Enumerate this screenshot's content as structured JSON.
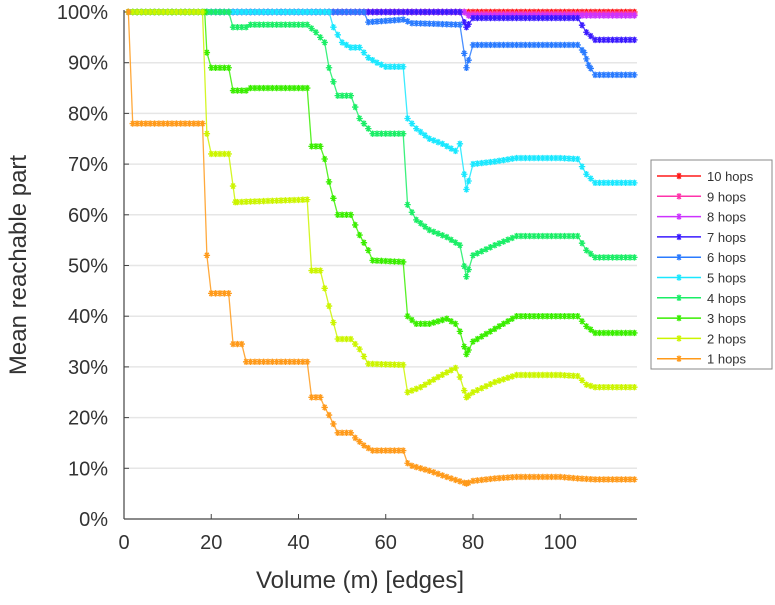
{
  "chart_data": {
    "type": "line",
    "title": "",
    "xlabel": "Volume (m) [edges]",
    "ylabel": "Mean reachable part",
    "xlim": [
      0,
      117.6
    ],
    "ylim": [
      0,
      100
    ],
    "xticks": [
      0,
      20,
      40,
      60,
      80,
      100
    ],
    "xtick_labels": [
      "0",
      "20",
      "40",
      "60",
      "80",
      "100"
    ],
    "yticks": [
      0,
      10,
      20,
      30,
      40,
      50,
      60,
      70,
      80,
      90,
      100
    ],
    "ytick_labels": [
      "0%",
      "10%",
      "20%",
      "30%",
      "40%",
      "50%",
      "60%",
      "70%",
      "80%",
      "90%",
      "100%"
    ],
    "grid": "horizontal",
    "legend_position": "right",
    "series": [
      {
        "name": "10 hops",
        "color": "#ff1a1a",
        "points": [
          [
            1,
            100
          ],
          [
            117,
            100
          ]
        ]
      },
      {
        "name": "9 hops",
        "color": "#ff33aa",
        "points": [
          [
            1,
            100
          ],
          [
            78,
            100
          ],
          [
            79,
            99.6
          ],
          [
            117,
            99.6
          ]
        ]
      },
      {
        "name": "8 hops",
        "color": "#cc33ff",
        "points": [
          [
            1,
            100
          ],
          [
            78,
            100
          ],
          [
            79,
            99.3
          ],
          [
            117,
            99.3
          ]
        ]
      },
      {
        "name": "7 hops",
        "color": "#3a1aff",
        "points": [
          [
            1,
            100
          ],
          [
            77,
            100
          ],
          [
            78.5,
            97
          ],
          [
            80,
            98.8
          ],
          [
            104,
            98.8
          ],
          [
            106,
            96
          ],
          [
            108,
            94.5
          ],
          [
            117,
            94.5
          ]
        ]
      },
      {
        "name": "6 hops",
        "color": "#2a7bff",
        "points": [
          [
            1,
            100
          ],
          [
            55,
            100
          ],
          [
            56,
            98
          ],
          [
            64,
            98.5
          ],
          [
            66,
            97.8
          ],
          [
            77,
            97.5
          ],
          [
            78.5,
            89
          ],
          [
            80,
            93.5
          ],
          [
            104,
            93.5
          ],
          [
            105.5,
            92
          ],
          [
            106.5,
            89.5
          ],
          [
            108,
            87.6
          ],
          [
            117,
            87.6
          ]
        ]
      },
      {
        "name": "5 hops",
        "color": "#1ae8ff",
        "points": [
          [
            1,
            100
          ],
          [
            47,
            100
          ],
          [
            48,
            97
          ],
          [
            50,
            94
          ],
          [
            52,
            93
          ],
          [
            54,
            93
          ],
          [
            56,
            91
          ],
          [
            58,
            90
          ],
          [
            60,
            89.2
          ],
          [
            64,
            89.2
          ],
          [
            65,
            79
          ],
          [
            67,
            77
          ],
          [
            70,
            75
          ],
          [
            73,
            74
          ],
          [
            76,
            72.6
          ],
          [
            77,
            74
          ],
          [
            78.5,
            65
          ],
          [
            80,
            70
          ],
          [
            85,
            70.5
          ],
          [
            90,
            71.2
          ],
          [
            100,
            71.2
          ],
          [
            104,
            71
          ],
          [
            106,
            68
          ],
          [
            108,
            66.3
          ],
          [
            117,
            66.3
          ]
        ]
      },
      {
        "name": "4 hops",
        "color": "#1aee66",
        "points": [
          [
            1,
            100
          ],
          [
            24,
            100
          ],
          [
            25,
            97
          ],
          [
            28,
            97
          ],
          [
            29,
            97.5
          ],
          [
            42,
            97.5
          ],
          [
            44,
            96
          ],
          [
            46,
            94
          ],
          [
            47,
            89
          ],
          [
            49,
            83.5
          ],
          [
            52,
            83.5
          ],
          [
            54,
            79
          ],
          [
            57,
            76
          ],
          [
            64,
            76
          ],
          [
            65,
            62
          ],
          [
            67,
            59
          ],
          [
            70,
            57
          ],
          [
            74,
            55.6
          ],
          [
            77,
            54
          ],
          [
            78.5,
            47.8
          ],
          [
            80,
            52
          ],
          [
            85,
            54
          ],
          [
            90,
            55.8
          ],
          [
            100,
            55.8
          ],
          [
            104,
            55.8
          ],
          [
            106,
            53
          ],
          [
            108,
            51.6
          ],
          [
            117,
            51.6
          ]
        ]
      },
      {
        "name": "3 hops",
        "color": "#3aee00",
        "points": [
          [
            1,
            100
          ],
          [
            18.5,
            100
          ],
          [
            19,
            92
          ],
          [
            20,
            89
          ],
          [
            24,
            89
          ],
          [
            25,
            84.5
          ],
          [
            28,
            84.5
          ],
          [
            29,
            85
          ],
          [
            42,
            85
          ],
          [
            43,
            73.5
          ],
          [
            45,
            73.5
          ],
          [
            46,
            71
          ],
          [
            47,
            66.5
          ],
          [
            49,
            60
          ],
          [
            52,
            60
          ],
          [
            54,
            56
          ],
          [
            56,
            53
          ],
          [
            57,
            51
          ],
          [
            64,
            50.7
          ],
          [
            65,
            40
          ],
          [
            67,
            38.5
          ],
          [
            70,
            38.5
          ],
          [
            74,
            39.5
          ],
          [
            76,
            38.5
          ],
          [
            77,
            37
          ],
          [
            78.5,
            32.5
          ],
          [
            80,
            35
          ],
          [
            85,
            37.5
          ],
          [
            90,
            40
          ],
          [
            100,
            40
          ],
          [
            104,
            40
          ],
          [
            106,
            38
          ],
          [
            108,
            36.7
          ],
          [
            117,
            36.7
          ]
        ]
      },
      {
        "name": "2 hops",
        "color": "#ccf500",
        "points": [
          [
            1,
            100
          ],
          [
            18,
            100
          ],
          [
            19,
            76
          ],
          [
            20,
            72
          ],
          [
            24,
            72
          ],
          [
            25.5,
            62.5
          ],
          [
            42,
            63
          ],
          [
            43,
            49
          ],
          [
            45,
            49
          ],
          [
            46,
            45.5
          ],
          [
            47,
            42
          ],
          [
            49,
            35.5
          ],
          [
            52,
            35.5
          ],
          [
            54,
            33.5
          ],
          [
            56,
            30.6
          ],
          [
            64,
            30.4
          ],
          [
            65,
            25
          ],
          [
            68,
            26
          ],
          [
            72,
            28
          ],
          [
            76,
            29.8
          ],
          [
            77,
            28
          ],
          [
            78.5,
            24
          ],
          [
            80,
            25
          ],
          [
            85,
            27
          ],
          [
            90,
            28.4
          ],
          [
            100,
            28.4
          ],
          [
            104,
            28.2
          ],
          [
            106,
            26.5
          ],
          [
            108,
            26
          ],
          [
            117,
            26
          ]
        ]
      },
      {
        "name": "1 hops",
        "color": "#ff9a1a",
        "points": [
          [
            1,
            100
          ],
          [
            2,
            78
          ],
          [
            18,
            78
          ],
          [
            19,
            52
          ],
          [
            20,
            44.5
          ],
          [
            24,
            44.5
          ],
          [
            25,
            34.5
          ],
          [
            27,
            34.5
          ],
          [
            28,
            31
          ],
          [
            42,
            31
          ],
          [
            43,
            24
          ],
          [
            45,
            24
          ],
          [
            46,
            22
          ],
          [
            47,
            20.5
          ],
          [
            49,
            17
          ],
          [
            52,
            17
          ],
          [
            53,
            16
          ],
          [
            55,
            14.5
          ],
          [
            57,
            13.5
          ],
          [
            64,
            13.5
          ],
          [
            65,
            11
          ],
          [
            66,
            10.5
          ],
          [
            70,
            9.5
          ],
          [
            75,
            8
          ],
          [
            78.5,
            7
          ],
          [
            80,
            7.5
          ],
          [
            85,
            8
          ],
          [
            90,
            8.3
          ],
          [
            100,
            8.3
          ],
          [
            104,
            8
          ],
          [
            108,
            7.8
          ],
          [
            117,
            7.8
          ]
        ]
      }
    ]
  }
}
